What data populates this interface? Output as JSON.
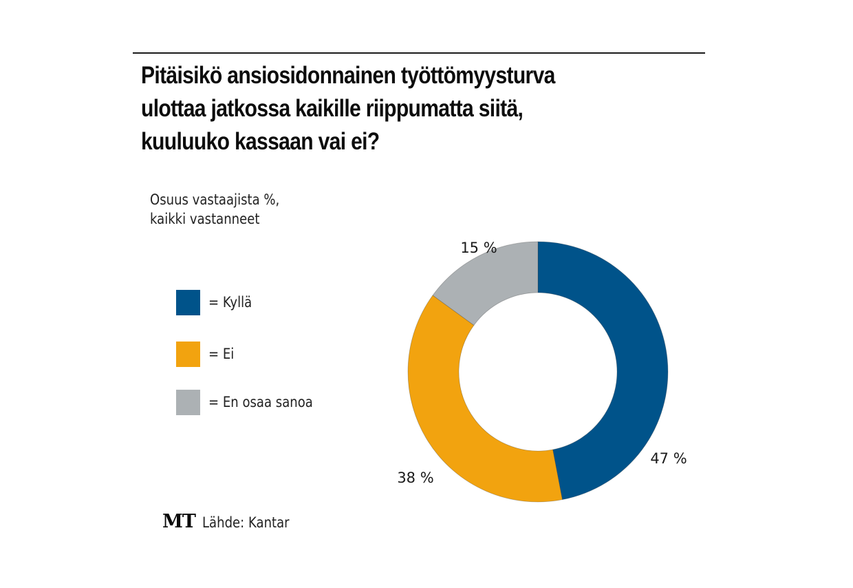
{
  "title_lines": [
    "Pitäisikö ansiosidonnainen työttömyysturva",
    "ulottaa jatkossa kaikille riippumatta siitä,",
    "kuuluuko kassaan vai ei?"
  ],
  "subtitle_lines": [
    "Osuus vastaajista %,",
    "kaikki vastanneet"
  ],
  "legend": [
    {
      "label": "= Kyllä",
      "color": "#00538a"
    },
    {
      "label": "= Ei",
      "color": "#f2a30f"
    },
    {
      "label": "= En osaa sanoa",
      "color": "#acb1b4"
    }
  ],
  "footer": {
    "logo": "MT",
    "source": "Lähde: Kantar"
  },
  "chart_data": {
    "type": "pie",
    "variant": "donut",
    "title": "Pitäisikö ansiosidonnainen työttömyysturva ulottaa jatkossa kaikille riippumatta siitä, kuuluuko kassaan vai ei?",
    "subtitle": "Osuus vastaajista %, kaikki vastanneet",
    "unit": "%",
    "start": "12 o'clock",
    "direction": "clockwise",
    "legend_position": "left",
    "slices": [
      {
        "name": "Kyllä",
        "value": 47,
        "label": "47 %",
        "color": "#00538a"
      },
      {
        "name": "Ei",
        "value": 38,
        "label": "38 %",
        "color": "#f2a30f"
      },
      {
        "name": "En osaa sanoa",
        "value": 15,
        "label": "15 %",
        "color": "#acb1b4"
      }
    ]
  }
}
